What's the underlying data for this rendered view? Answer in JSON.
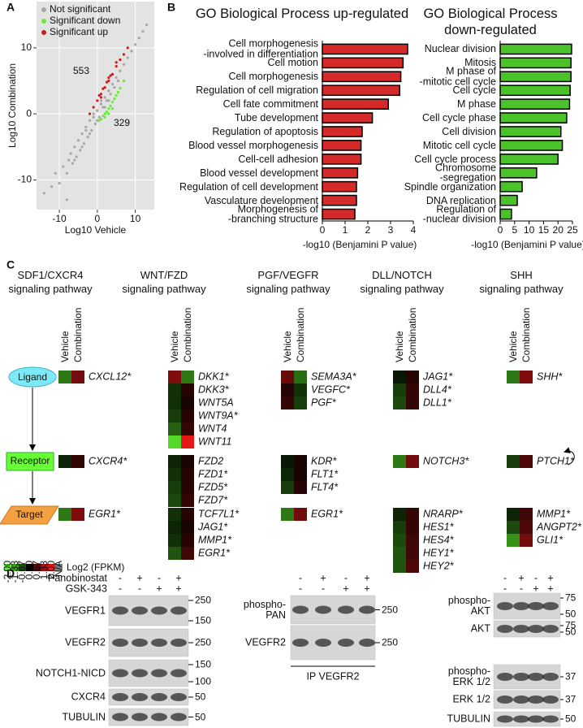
{
  "panel_labels": [
    "A",
    "B",
    "C",
    "D"
  ],
  "chart_data": [
    {
      "type": "scatter",
      "xlabel": "Log10 Vehicle",
      "ylabel": "Log10 Combination",
      "xlim": [
        -16,
        15
      ],
      "ylim": [
        -14.5,
        17
      ],
      "xticks": [
        -10,
        0,
        10
      ],
      "yticks": [
        -10,
        0,
        10
      ],
      "grid": true,
      "legend": "upper left",
      "series": [
        {
          "name": "Not significant",
          "color": "#a6a6a6",
          "x": [
            -12,
            -10,
            -9,
            -8,
            -7.5,
            -7,
            -6.5,
            -6,
            -5.5,
            -5,
            -4.5,
            -4,
            -3.5,
            -3,
            -2.5,
            -2,
            -1.5,
            -1,
            -0.5,
            0,
            0.5,
            1,
            1.5,
            2,
            2.5,
            3,
            3.5,
            4,
            4.5,
            5,
            5.5,
            6,
            7,
            8,
            9,
            10,
            11,
            12,
            13,
            -6,
            -4,
            -2,
            0,
            2,
            -3,
            -1,
            1,
            3,
            -14,
            -11,
            -8
          ],
          "y": [
            -11,
            -10.5,
            -8,
            -9,
            -7,
            -6,
            -7.5,
            -5,
            -6.5,
            -4,
            -5.5,
            -3,
            -4.5,
            -2.5,
            -3.5,
            -1,
            -2.5,
            -0.5,
            -1.5,
            0.5,
            -0.5,
            1.5,
            1,
            2.5,
            2,
            3.5,
            3,
            4.5,
            4,
            5.5,
            5,
            6.5,
            7.5,
            8.5,
            9.5,
            10.5,
            11.5,
            12.5,
            13.5,
            -7,
            -5,
            -3,
            -1,
            1,
            -2,
            0,
            2,
            2,
            -12,
            -9,
            -13
          ]
        },
        {
          "name": "Significant down",
          "color": "#66ee33",
          "x": [
            0.5,
            1,
            1.5,
            2,
            2.5,
            3,
            3.5,
            4,
            4.5,
            5,
            5.5,
            6,
            7,
            2,
            3,
            4
          ],
          "y": [
            -1,
            -0.8,
            -0.3,
            0,
            0.3,
            0.8,
            1.2,
            1.8,
            2.3,
            2.8,
            3.3,
            3.9,
            5,
            -0.5,
            0,
            0.8
          ]
        },
        {
          "name": "Significant up",
          "color": "#c81e1e",
          "x": [
            -2,
            -1,
            0,
            0.5,
            1,
            1.5,
            2,
            2.5,
            3,
            3.5,
            4,
            5,
            6,
            7,
            8,
            1,
            3,
            5
          ],
          "y": [
            0,
            1,
            2,
            2.8,
            3,
            3.8,
            4,
            4.8,
            5,
            5.8,
            6,
            7.2,
            8.2,
            9,
            10,
            2.5,
            5.5,
            7.8
          ]
        }
      ],
      "annotations": [
        {
          "text": "553",
          "color": "#d42020"
        },
        {
          "text": "329",
          "color": "#66ee33"
        }
      ]
    },
    {
      "type": "bar",
      "orientation": "horizontal",
      "title": "GO Biological Process up-regulated",
      "categories": [
        "Cell morphogenesis\n-involved in differentiation",
        "Cell motion",
        "Cell morphogenesis",
        "Regulation of cell migration",
        "Cell fate commitment",
        "Tube development",
        "Regulation of apoptosis",
        "Blood vessel morphogenesis",
        "Cell-cell adhesion",
        "Blood vessel development",
        "Regulation of cell development",
        "Vasculature development",
        "Morphogenesis of\n-branching structure"
      ],
      "values": [
        3.75,
        3.55,
        3.45,
        3.4,
        2.9,
        2.2,
        1.75,
        1.7,
        1.7,
        1.55,
        1.5,
        1.5,
        1.43
      ],
      "color": "#d42a2a",
      "xlim": [
        0,
        4
      ],
      "xticks": [
        0,
        1,
        2,
        3,
        4
      ],
      "xlabel": "-log10 (Benjamini P value)"
    },
    {
      "type": "bar",
      "orientation": "horizontal",
      "title": "GO Biological Process\ndown-regulated",
      "categories": [
        "Nuclear division",
        "Mitosis",
        "M phase of\n-mitotic cell cycle",
        "Cell cycle",
        "M phase",
        "Cell cycle phase",
        "Cell division",
        "Mitotic cell cycle",
        "Cell cycle process",
        "Chromosome\n-segregation",
        "Spindle organization",
        "DNA replication",
        "Regulation of\n-nuclear division"
      ],
      "values": [
        24.7,
        24.5,
        24.5,
        24.2,
        24,
        23,
        21,
        21.5,
        20,
        12.6,
        7.6,
        5.9,
        3.9
      ],
      "color": "#4cc22a",
      "xlim": [
        0,
        25
      ],
      "xticks": [
        0,
        5,
        10,
        15,
        20,
        25
      ],
      "xlabel": "-log10 (Benjamini P value)"
    }
  ],
  "panel_c": {
    "columns": [
      "Vehicle",
      "Combination"
    ],
    "levels": [
      "Ligand",
      "Receptor",
      "Target"
    ],
    "pathways": [
      {
        "title": "SDF1/CXCR4\nsignaling pathway",
        "groups": [
          {
            "genes": [
              "CXCL12*"
            ],
            "vehicle": [
              -1
            ],
            "combination": [
              0.9
            ]
          },
          {
            "genes": [
              "CXCR4*"
            ],
            "vehicle": [
              -0.3
            ],
            "combination": [
              0.4
            ]
          },
          {
            "genes": [
              "EGR1*"
            ],
            "vehicle": [
              -1
            ],
            "combination": [
              1
            ]
          }
        ]
      },
      {
        "title": "WNT/FZD\nsignaling pathway",
        "groups": [
          {
            "genes": [
              "DKK1*",
              "DKK3*",
              "WNT5A",
              "WNT9A*",
              "WNT4",
              "WNT11"
            ],
            "vehicle": [
              1,
              -0.4,
              -0.4,
              -0.5,
              -0.8,
              -1.8
            ],
            "combination": [
              -1,
              0.3,
              0.2,
              0.3,
              0.4,
              1.8
            ]
          },
          {
            "genes": [
              "FZD2",
              "FZD1*",
              "FZD5*",
              "FZD7*"
            ],
            "vehicle": [
              -0.3,
              -0.4,
              -0.5,
              -0.6
            ],
            "combination": [
              0.2,
              0.3,
              0.3,
              0.4
            ]
          },
          {
            "genes": [
              "TCF7L1*",
              "JAG1*",
              "MMP1*",
              "EGR1*"
            ],
            "vehicle": [
              -0.4,
              -0.3,
              -0.4,
              -0.7
            ],
            "combination": [
              0.3,
              0.2,
              0.3,
              0.5
            ]
          }
        ]
      },
      {
        "title": "PGF/VEGFR\nsignaling pathway",
        "groups": [
          {
            "genes": [
              "SEMA3A*",
              "VEGFC*",
              "PGF*"
            ],
            "vehicle": [
              0.8,
              0.3,
              0.4
            ],
            "combination": [
              -0.9,
              -0.4,
              -0.5
            ]
          },
          {
            "genes": [
              "KDR*",
              "FLT1*",
              "FLT4*"
            ],
            "vehicle": [
              -0.2,
              -0.3,
              -0.5
            ],
            "combination": [
              0.2,
              0.2,
              0.3
            ]
          },
          {
            "genes": [
              "EGR1*"
            ],
            "vehicle": [
              -1
            ],
            "combination": [
              0.9
            ]
          }
        ]
      },
      {
        "title": "DLL/NOTCH\nsignaling pathway",
        "groups": [
          {
            "genes": [
              "JAG1*",
              "DLL4*",
              "DLL1*"
            ],
            "vehicle": [
              -0.2,
              -0.5,
              -0.6
            ],
            "combination": [
              0.3,
              0.4,
              0.4
            ]
          },
          {
            "genes": [
              "NOTCH3*"
            ],
            "vehicle": [
              -1
            ],
            "combination": [
              0.9
            ]
          },
          {
            "genes": [
              "NRARP*",
              "HES1*",
              "HES4*",
              "HEY1*",
              "HEY2*"
            ],
            "vehicle": [
              -0.3,
              -0.5,
              -0.6,
              -0.7,
              -0.7
            ],
            "combination": [
              0.4,
              0.4,
              0.5,
              0.5,
              0.6
            ]
          }
        ]
      },
      {
        "title": "SHH\nsignaling pathway",
        "groups": [
          {
            "genes": [
              "SHH*"
            ],
            "vehicle": [
              -1
            ],
            "combination": [
              1
            ]
          },
          {
            "genes": [
              "PTCH1*"
            ],
            "vehicle": [
              -0.5
            ],
            "combination": [
              0.6
            ]
          },
          {
            "genes": [
              "MMP1*",
              "ANGPT2*",
              "GLI1*"
            ],
            "vehicle": [
              -0.3,
              -0.6,
              -1.2
            ],
            "combination": [
              0.5,
              0.6,
              0.9
            ]
          }
        ]
      }
    ],
    "color_scale": {
      "low": "#5cf22a",
      "mid": "#000000",
      "high": "#ff1a1a",
      "na_color": "#808080",
      "ticks": [
        {
          "value": -2,
          "label": "-2.00"
        },
        {
          "value": -1.33,
          "label": "-1.33"
        },
        {
          "value": -0.67,
          "label": "-0.67"
        },
        {
          "value": 0,
          "label": "0.00"
        },
        {
          "value": 0.67,
          "label": "0.67"
        },
        {
          "value": 1.33,
          "label": "1.33"
        },
        {
          "value": 2,
          "label": "2.00"
        }
      ],
      "na_label": "N/A",
      "label": "Log2 (FPKM)"
    }
  },
  "panel_d": {
    "blots": [
      {
        "treatments": [
          {
            "name": "Panobinostat",
            "signs": [
              "-",
              "+",
              "-",
              "+"
            ]
          },
          {
            "name": "GSK-343",
            "signs": [
              "-",
              "-",
              "+",
              "+"
            ]
          }
        ],
        "rows": [
          {
            "label": "VEGFR1",
            "markers": [
              250,
              150
            ]
          },
          {
            "label": "VEGFR2",
            "markers": [
              250
            ]
          },
          {
            "label": "NOTCH1-NICD",
            "markers": [
              150,
              100
            ]
          },
          {
            "label": "CXCR4",
            "markers": [
              50
            ]
          },
          {
            "label": "TUBULIN",
            "markers": [
              50
            ]
          }
        ]
      },
      {
        "treatments": [
          {
            "signs": [
              "-",
              "+",
              "-",
              "+"
            ]
          },
          {
            "signs": [
              "-",
              "-",
              "+",
              "+"
            ]
          }
        ],
        "rows": [
          {
            "label": "phospho-\nPAN",
            "markers": [
              250
            ]
          },
          {
            "label": "VEGFR2",
            "markers": [
              250
            ]
          }
        ],
        "note": "IP VEGFR2"
      },
      {
        "treatments": [
          {
            "signs": [
              "-",
              "+",
              "-",
              "+"
            ]
          },
          {
            "signs": [
              "-",
              "-",
              "+",
              "+"
            ]
          }
        ],
        "rows": [
          {
            "label": "phospho-\nAKT",
            "markers": [
              75,
              50
            ]
          },
          {
            "label": "AKT",
            "markers": [
              75,
              50
            ]
          },
          {
            "label": "phospho-\nERK 1/2",
            "markers": [
              37
            ]
          },
          {
            "label": "ERK 1/2",
            "markers": [
              37
            ]
          },
          {
            "label": "TUBULIN",
            "markers": [
              50
            ]
          }
        ]
      }
    ]
  }
}
